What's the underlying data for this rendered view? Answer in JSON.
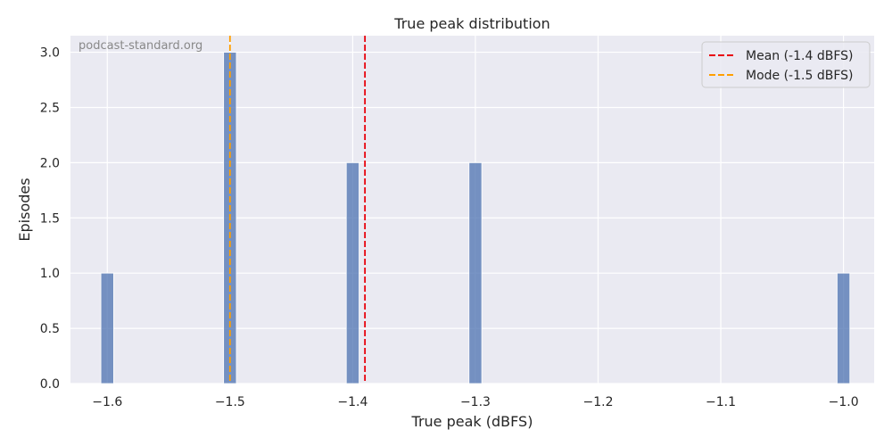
{
  "chart_data": {
    "type": "bar",
    "title": "True peak distribution",
    "xlabel": "True peak (dBFS)",
    "ylabel": "Episodes",
    "watermark": "podcast-standard.org",
    "xlim": [
      -1.63,
      -0.975
    ],
    "ylim": [
      0,
      3.15
    ],
    "x_ticks": [
      -1.6,
      -1.5,
      -1.4,
      -1.3,
      -1.2,
      -1.1,
      -1.0
    ],
    "x_tick_labels": [
      "−1.6",
      "−1.5",
      "−1.4",
      "−1.3",
      "−1.2",
      "−1.1",
      "−1.0"
    ],
    "y_ticks": [
      0,
      0.5,
      1.0,
      1.5,
      2.0,
      2.5,
      3.0
    ],
    "y_tick_labels": [
      "0.0",
      "0.5",
      "1.0",
      "1.5",
      "2.0",
      "2.5",
      "3.0"
    ],
    "bars": [
      {
        "x": -1.6,
        "count": 1
      },
      {
        "x": -1.5,
        "count": 3
      },
      {
        "x": -1.4,
        "count": 2
      },
      {
        "x": -1.3,
        "count": 2
      },
      {
        "x": -1.0,
        "count": 1
      }
    ],
    "bin_width": 0.0104,
    "bar_color": "#4c72b0",
    "reference_lines": [
      {
        "label": "Mean (-1.4 dBFS)",
        "x": -1.39,
        "color": "#e8000b",
        "style": "dashed"
      },
      {
        "label": "Mode (-1.5 dBFS)",
        "x": -1.5,
        "color": "#ff9f00",
        "style": "dashed"
      }
    ],
    "legend_position": "top-right",
    "grid": true,
    "background": "#eaeaf2",
    "grid_color": "#ffffff"
  }
}
